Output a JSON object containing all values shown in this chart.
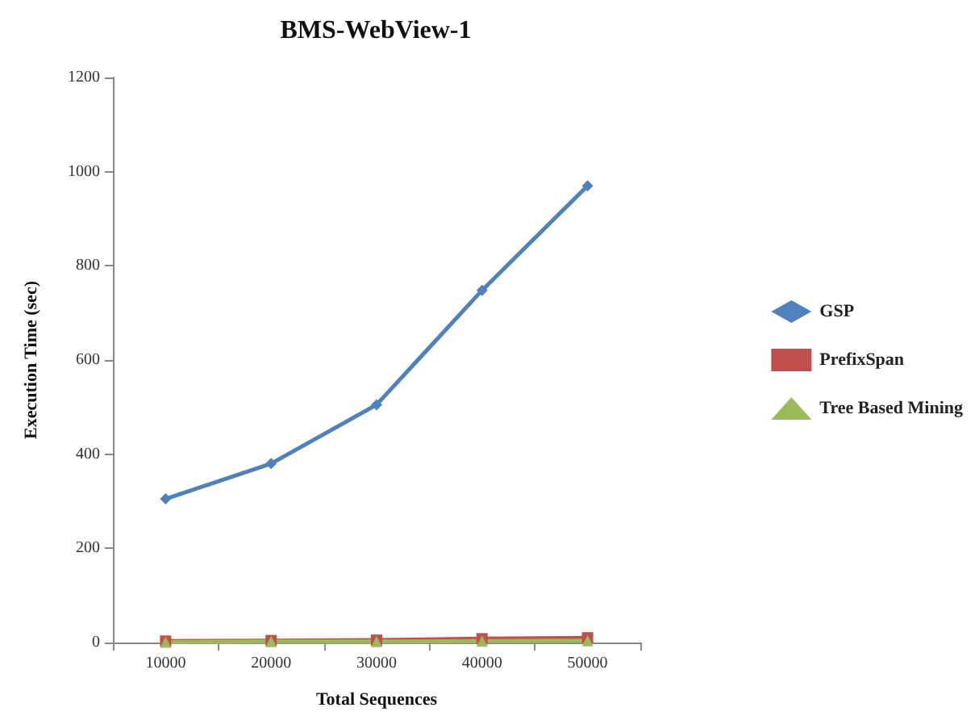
{
  "chart_data": {
    "type": "line",
    "title": "BMS-WebView-1",
    "xlabel": "Total Sequences",
    "ylabel": "Execution Time (sec)",
    "categories": [
      "10000",
      "20000",
      "30000",
      "40000",
      "50000"
    ],
    "ylim": [
      0,
      1200
    ],
    "yticks": [
      0,
      200,
      400,
      600,
      800,
      1000,
      1200
    ],
    "grid": false,
    "legend": "right",
    "series": [
      {
        "name": "GSP",
        "color": "#4f81bd",
        "marker": "diamond",
        "values": [
          305,
          380,
          505,
          748,
          970
        ]
      },
      {
        "name": "PrefixSpan",
        "color": "#c0504d",
        "marker": "square",
        "values": [
          3,
          4,
          5,
          8,
          10
        ]
      },
      {
        "name": "Tree Based Mining",
        "color": "#9bbb59",
        "marker": "triangle",
        "values": [
          1,
          2,
          2,
          3,
          4
        ]
      }
    ]
  }
}
